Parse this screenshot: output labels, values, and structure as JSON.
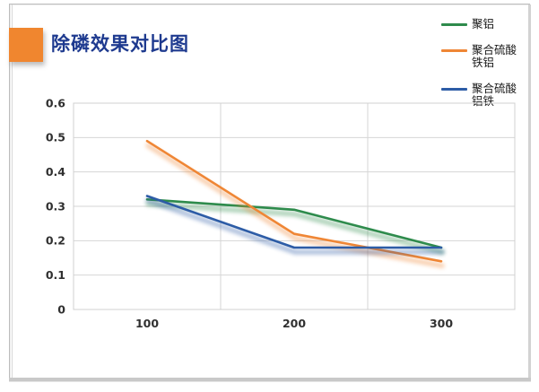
{
  "header": {
    "title": "除磷效果对比图",
    "title_color": "#1E3A8F",
    "accent_color": "#F0862F"
  },
  "legend": {
    "position": "top-right",
    "items": [
      {
        "label": "聚铝",
        "color": "#2E8B4C"
      },
      {
        "label": "聚合硫酸铁铝",
        "color": "#EF8635"
      },
      {
        "label": "聚合硫酸铝铁",
        "color": "#2D5CA6"
      }
    ]
  },
  "chart_data": {
    "type": "line",
    "title": "除磷效果对比图",
    "categories": [
      100,
      200,
      300
    ],
    "x_tick_labels": [
      "100",
      "200",
      "300"
    ],
    "series": [
      {
        "name": "聚铝",
        "color": "#2E8B4C",
        "values": [
          0.32,
          0.29,
          0.18
        ]
      },
      {
        "name": "聚合硫酸铁铝",
        "color": "#EF8635",
        "values": [
          0.49,
          0.22,
          0.14
        ]
      },
      {
        "name": "聚合硫酸铝铁",
        "color": "#2D5CA6",
        "values": [
          0.33,
          0.18,
          0.18
        ]
      }
    ],
    "xlabel": "",
    "ylabel": "",
    "ylim": [
      0,
      0.6
    ],
    "y_tick_step": 0.1,
    "y_tick_labels": [
      "0",
      "0.1",
      "0.2",
      "0.3",
      "0.4",
      "0.5",
      "0.6"
    ],
    "grid": true,
    "gridline_color": "#D6D6D6",
    "plot_border_color": "#D0D0D0",
    "tick_label_color": "#303030",
    "legend_position": "top-right",
    "line_glow": true
  }
}
